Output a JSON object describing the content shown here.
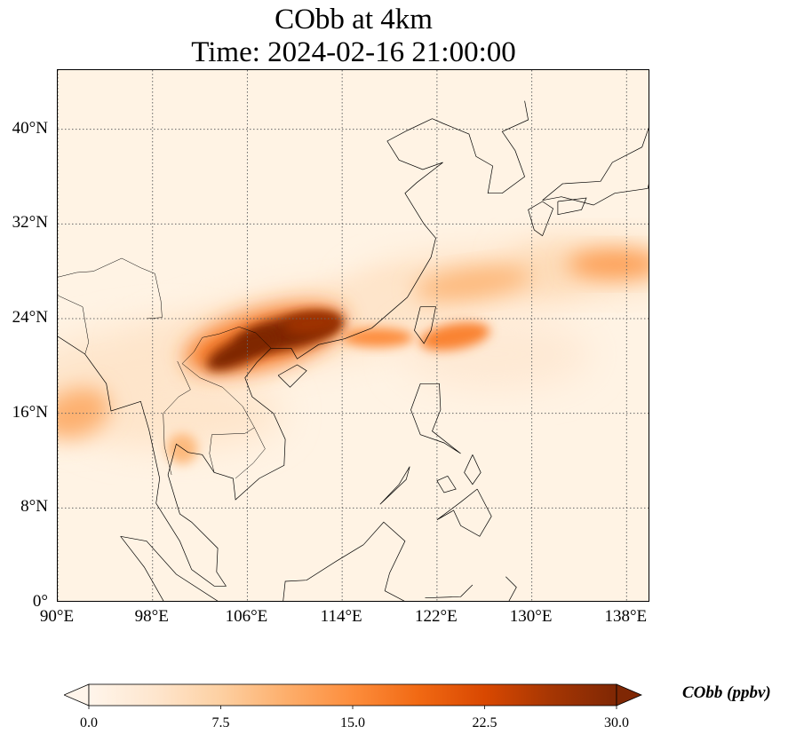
{
  "title": {
    "line1": "CObb at 4km",
    "line2": "Time: 2024-02-16 21:00:00"
  },
  "axes": {
    "lon_ticks": [
      "90°E",
      "98°E",
      "106°E",
      "114°E",
      "122°E",
      "130°E",
      "138°E"
    ],
    "lat_ticks": [
      "40°N",
      "32°N",
      "24°N",
      "16°N",
      "8°N",
      "0°"
    ],
    "lon_range": [
      90,
      140
    ],
    "lat_range": [
      0,
      45
    ]
  },
  "colorbar": {
    "label": "CObb (ppbv)",
    "ticks": [
      "0.0",
      "7.5",
      "15.0",
      "22.5",
      "30.0"
    ],
    "range": [
      0,
      30
    ],
    "colormap": [
      "#fff5eb",
      "#fee6ce",
      "#fdd0a2",
      "#fdae6b",
      "#fd8d3c",
      "#f16913",
      "#d94801",
      "#a63603",
      "#7f2704"
    ]
  },
  "colors": {
    "background": "#fff3e4",
    "coastline": "#000000",
    "gridline": "#666666"
  },
  "chart_data": {
    "type": "heatmap",
    "title": "CObb at 4km\nTime: 2024-02-16 21:00:00",
    "variable": "CObb",
    "units": "ppbv",
    "x_range_lon": [
      90,
      140
    ],
    "y_range_lat": [
      0,
      45
    ],
    "plumes": [
      {
        "lon_center": 109.5,
        "lat_center": 22.5,
        "peak_ppbv": 30
      },
      {
        "lon_center": 105,
        "lat_center": 21,
        "peak_ppbv": 30
      },
      {
        "lon_center": 124,
        "lat_center": 22.5,
        "peak_ppbv": 18
      },
      {
        "lon_center": 126,
        "lat_center": 27,
        "peak_ppbv": 12
      },
      {
        "lon_center": 138,
        "lat_center": 28.5,
        "peak_ppbv": 13
      },
      {
        "lon_center": 91,
        "lat_center": 16,
        "peak_ppbv": 10
      },
      {
        "lon_center": 100.5,
        "lat_center": 13,
        "peak_ppbv": 10
      }
    ]
  }
}
